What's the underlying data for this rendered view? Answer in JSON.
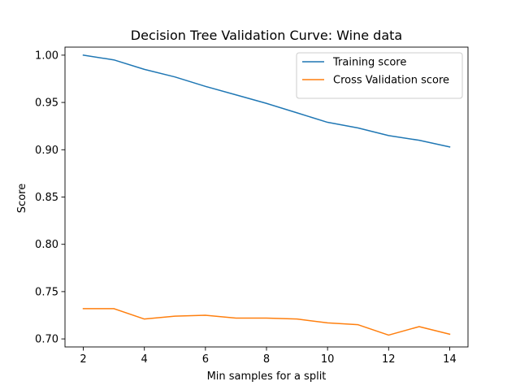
{
  "chart_data": {
    "type": "line",
    "title": "Decision Tree Validation Curve: Wine data",
    "xlabel": "Min samples for a split",
    "ylabel": "Score",
    "x": [
      2,
      3,
      4,
      5,
      6,
      7,
      8,
      9,
      10,
      11,
      12,
      13,
      14
    ],
    "xlim": [
      1.4,
      14.6
    ],
    "ylim": [
      0.6915,
      1.0085
    ],
    "xticks": [
      2,
      4,
      6,
      8,
      10,
      12,
      14
    ],
    "xtick_labels": [
      "2",
      "4",
      "6",
      "8",
      "10",
      "12",
      "14"
    ],
    "yticks": [
      0.7,
      0.75,
      0.8,
      0.85,
      0.9,
      0.95,
      1.0
    ],
    "ytick_labels": [
      "0.70",
      "0.75",
      "0.80",
      "0.85",
      "0.90",
      "0.95",
      "1.00"
    ],
    "grid": false,
    "legend_position": "top-right",
    "series": [
      {
        "name": "Training score",
        "color": "#1f77b4",
        "values": [
          1.0,
          0.995,
          0.985,
          0.977,
          0.967,
          0.958,
          0.949,
          0.939,
          0.929,
          0.923,
          0.915,
          0.91,
          0.903
        ]
      },
      {
        "name": "Cross Validation score",
        "color": "#ff7f0e",
        "values": [
          0.732,
          0.732,
          0.721,
          0.724,
          0.725,
          0.722,
          0.722,
          0.721,
          0.717,
          0.715,
          0.704,
          0.713,
          0.705
        ]
      }
    ]
  }
}
